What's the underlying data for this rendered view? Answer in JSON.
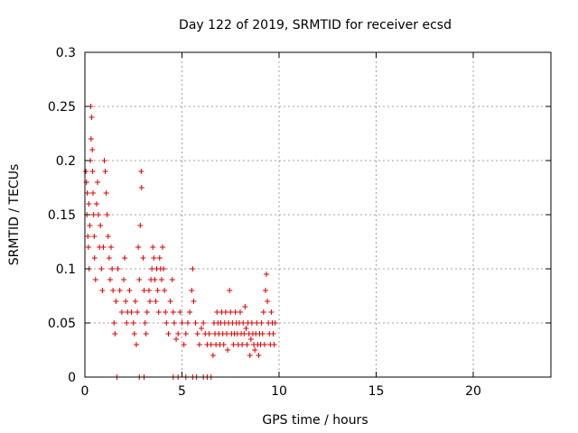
{
  "chart_data": {
    "type": "scatter",
    "title": "Day 122 of 2019, SRMTID for receiver ecsd",
    "xlabel": "GPS time / hours",
    "ylabel": "SRMTID / TECUs",
    "xlim": [
      0,
      24
    ],
    "ylim": [
      0,
      0.3
    ],
    "xticks": [
      0,
      5,
      10,
      15,
      20
    ],
    "xtick_labels": [
      "0",
      "5",
      "10",
      "15",
      "20"
    ],
    "yticks": [
      0,
      0.05,
      0.1,
      0.15,
      0.2,
      0.25,
      0.3
    ],
    "ytick_labels": [
      "0",
      "0.05",
      "0.1",
      "0.15",
      "0.2",
      "0.25",
      "0.3"
    ],
    "grid": true,
    "marker": "plus",
    "color": "#dd0000",
    "series": [
      {
        "name": "SRMTID",
        "points": [
          [
            0.05,
            0.19
          ],
          [
            0.08,
            0.18
          ],
          [
            0.1,
            0.15
          ],
          [
            0.12,
            0.17
          ],
          [
            0.15,
            0.13
          ],
          [
            0.18,
            0.12
          ],
          [
            0.2,
            0.16
          ],
          [
            0.22,
            0.1
          ],
          [
            0.25,
            0.14
          ],
          [
            0.28,
            0.2
          ],
          [
            0.3,
            0.25
          ],
          [
            0.32,
            0.22
          ],
          [
            0.35,
            0.24
          ],
          [
            0.38,
            0.21
          ],
          [
            0.4,
            0.19
          ],
          [
            0.42,
            0.17
          ],
          [
            0.45,
            0.15
          ],
          [
            0.48,
            0.13
          ],
          [
            0.5,
            0.11
          ],
          [
            0.55,
            0.09
          ],
          [
            0.6,
            0.16
          ],
          [
            0.65,
            0.18
          ],
          [
            0.7,
            0.15
          ],
          [
            0.75,
            0.12
          ],
          [
            0.8,
            0.14
          ],
          [
            0.85,
            0.1
          ],
          [
            0.9,
            0.08
          ],
          [
            0.95,
            0.12
          ],
          [
            1.0,
            0.2
          ],
          [
            1.05,
            0.19
          ],
          [
            1.1,
            0.17
          ],
          [
            1.15,
            0.15
          ],
          [
            1.2,
            0.13
          ],
          [
            1.25,
            0.11
          ],
          [
            1.3,
            0.09
          ],
          [
            1.35,
            0.12
          ],
          [
            1.4,
            0.1
          ],
          [
            1.45,
            0.08
          ],
          [
            1.5,
            0.05
          ],
          [
            1.55,
            0.04
          ],
          [
            1.6,
            0.07
          ],
          [
            1.7,
            0.1
          ],
          [
            1.8,
            0.08
          ],
          [
            1.9,
            0.06
          ],
          [
            2.0,
            0.09
          ],
          [
            2.05,
            0.11
          ],
          [
            2.1,
            0.07
          ],
          [
            2.15,
            0.05
          ],
          [
            2.2,
            0.06
          ],
          [
            2.3,
            0.08
          ],
          [
            2.4,
            0.06
          ],
          [
            2.5,
            0.05
          ],
          [
            2.55,
            0.04
          ],
          [
            2.6,
            0.07
          ],
          [
            2.65,
            0.03
          ],
          [
            2.7,
            0.06
          ],
          [
            2.75,
            0.12
          ],
          [
            2.8,
            0.09
          ],
          [
            2.85,
            0.14
          ],
          [
            2.9,
            0.19
          ],
          [
            2.92,
            0.175
          ],
          [
            3.0,
            0.11
          ],
          [
            3.05,
            0.08
          ],
          [
            3.1,
            0.05
          ],
          [
            3.15,
            0.04
          ],
          [
            3.2,
            0.06
          ],
          [
            3.3,
            0.08
          ],
          [
            3.35,
            0.07
          ],
          [
            3.4,
            0.09
          ],
          [
            3.45,
            0.1
          ],
          [
            3.5,
            0.12
          ],
          [
            3.55,
            0.11
          ],
          [
            3.6,
            0.09
          ],
          [
            3.65,
            0.07
          ],
          [
            3.7,
            0.1
          ],
          [
            3.75,
            0.08
          ],
          [
            3.8,
            0.06
          ],
          [
            3.85,
            0.11
          ],
          [
            3.9,
            0.1
          ],
          [
            3.95,
            0.09
          ],
          [
            4.0,
            0.12
          ],
          [
            4.05,
            0.1
          ],
          [
            4.1,
            0.08
          ],
          [
            4.15,
            0.06
          ],
          [
            4.2,
            0.05
          ],
          [
            4.3,
            0.04
          ],
          [
            4.4,
            0.07
          ],
          [
            4.5,
            0.09
          ],
          [
            4.55,
            0.06
          ],
          [
            4.6,
            0.05
          ],
          [
            4.7,
            0.035
          ],
          [
            4.8,
            0.04
          ],
          [
            4.9,
            0.06
          ],
          [
            5.0,
            0.05
          ],
          [
            5.1,
            0.03
          ],
          [
            5.2,
            0.04
          ],
          [
            5.3,
            0.05
          ],
          [
            5.4,
            0.06
          ],
          [
            5.5,
            0.08
          ],
          [
            5.55,
            0.1
          ],
          [
            5.6,
            0.07
          ],
          [
            5.7,
            0.05
          ],
          [
            5.8,
            0.04
          ],
          [
            5.9,
            0.03
          ],
          [
            6.0,
            0.045
          ],
          [
            6.1,
            0.05
          ],
          [
            6.2,
            0.04
          ],
          [
            6.3,
            0.03
          ],
          [
            6.4,
            0.04
          ],
          [
            6.5,
            0.03
          ],
          [
            6.6,
            0.02
          ],
          [
            6.65,
            0.05
          ],
          [
            6.7,
            0.04
          ],
          [
            6.75,
            0.03
          ],
          [
            6.8,
            0.06
          ],
          [
            6.85,
            0.05
          ],
          [
            6.9,
            0.04
          ],
          [
            6.95,
            0.03
          ],
          [
            7.0,
            0.05
          ],
          [
            7.05,
            0.06
          ],
          [
            7.1,
            0.04
          ],
          [
            7.15,
            0.03
          ],
          [
            7.2,
            0.05
          ],
          [
            7.25,
            0.06
          ],
          [
            7.3,
            0.04
          ],
          [
            7.35,
            0.025
          ],
          [
            7.4,
            0.05
          ],
          [
            7.45,
            0.08
          ],
          [
            7.5,
            0.06
          ],
          [
            7.55,
            0.04
          ],
          [
            7.6,
            0.05
          ],
          [
            7.65,
            0.03
          ],
          [
            7.7,
            0.04
          ],
          [
            7.75,
            0.06
          ],
          [
            7.8,
            0.05
          ],
          [
            7.85,
            0.04
          ],
          [
            7.9,
            0.03
          ],
          [
            7.95,
            0.05
          ],
          [
            8.0,
            0.06
          ],
          [
            8.05,
            0.04
          ],
          [
            8.1,
            0.03
          ],
          [
            8.15,
            0.05
          ],
          [
            8.2,
            0.04
          ],
          [
            8.25,
            0.065
          ],
          [
            8.3,
            0.045
          ],
          [
            8.35,
            0.03
          ],
          [
            8.4,
            0.05
          ],
          [
            8.45,
            0.04
          ],
          [
            8.5,
            0.02
          ],
          [
            8.55,
            0.035
          ],
          [
            8.6,
            0.05
          ],
          [
            8.65,
            0.04
          ],
          [
            8.7,
            0.03
          ],
          [
            8.75,
            0.025
          ],
          [
            8.8,
            0.04
          ],
          [
            8.85,
            0.05
          ],
          [
            8.9,
            0.03
          ],
          [
            8.95,
            0.02
          ],
          [
            9.0,
            0.04
          ],
          [
            9.05,
            0.03
          ],
          [
            9.1,
            0.05
          ],
          [
            9.15,
            0.04
          ],
          [
            9.2,
            0.06
          ],
          [
            9.25,
            0.03
          ],
          [
            9.3,
            0.08
          ],
          [
            9.35,
            0.095
          ],
          [
            9.4,
            0.07
          ],
          [
            9.45,
            0.05
          ],
          [
            9.5,
            0.04
          ],
          [
            9.55,
            0.03
          ],
          [
            9.6,
            0.06
          ],
          [
            9.65,
            0.05
          ],
          [
            9.7,
            0.04
          ],
          [
            9.75,
            0.03
          ],
          [
            9.8,
            0.05
          ]
        ]
      },
      {
        "name": "zero-values",
        "points": [
          [
            1.65,
            0
          ],
          [
            2.8,
            0
          ],
          [
            3.05,
            0
          ],
          [
            4.55,
            0
          ],
          [
            4.8,
            0
          ],
          [
            5.2,
            0
          ],
          [
            5.55,
            0
          ],
          [
            5.75,
            0
          ],
          [
            6.1,
            0
          ],
          [
            6.3,
            0
          ],
          [
            6.5,
            0
          ]
        ]
      }
    ]
  }
}
